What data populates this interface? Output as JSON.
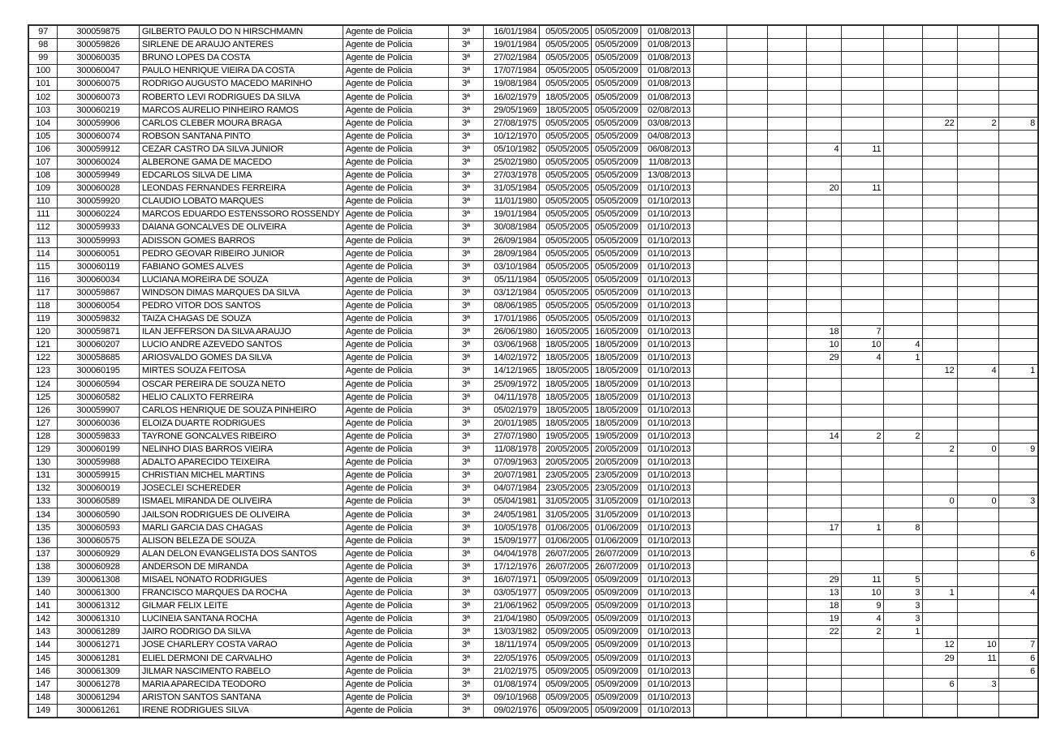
{
  "colors": {
    "background": "#ffffff",
    "grid_border": "#2d2d2d",
    "text": "#000000"
  },
  "table": {
    "position_value": "Agente de Policia",
    "class_value": "3ª",
    "row_number_range": "97-149",
    "rows": [
      [
        "97",
        "300059875",
        "GILBERTO PAULO DO N HIRSCHMAMN",
        "Agente de Policia",
        "3ª",
        "16/01/1984",
        "05/05/2005",
        "05/05/2009",
        "01/08/2013",
        "",
        "",
        "",
        "",
        "",
        "",
        "",
        "",
        ""
      ],
      [
        "98",
        "300059826",
        "SIRLENE DE ARAUJO ANTERES",
        "Agente de Policia",
        "3ª",
        "19/01/1984",
        "05/05/2005",
        "05/05/2009",
        "01/08/2013",
        "",
        "",
        "",
        "",
        "",
        "",
        "",
        "",
        ""
      ],
      [
        "99",
        "300060035",
        "BRUNO LOPES DA COSTA",
        "Agente de Policia",
        "3ª",
        "27/02/1984",
        "05/05/2005",
        "05/05/2009",
        "01/08/2013",
        "",
        "",
        "",
        "",
        "",
        "",
        "",
        "",
        ""
      ],
      [
        "100",
        "300060047",
        "PAULO HENRIQUE VIEIRA DA COSTA",
        "Agente de Policia",
        "3ª",
        "17/07/1984",
        "05/05/2005",
        "05/05/2009",
        "01/08/2013",
        "",
        "",
        "",
        "",
        "",
        "",
        "",
        "",
        ""
      ],
      [
        "101",
        "300060075",
        "RODRIGO AUGUSTO MACEDO MARINHO",
        "Agente de Policia",
        "3ª",
        "19/08/1984",
        "05/05/2005",
        "05/05/2009",
        "01/08/2013",
        "",
        "",
        "",
        "",
        "",
        "",
        "",
        "",
        ""
      ],
      [
        "102",
        "300060073",
        "ROBERTO LEVI RODRIGUES DA SILVA",
        "Agente de Policia",
        "3ª",
        "16/02/1979",
        "18/05/2005",
        "05/05/2009",
        "01/08/2013",
        "",
        "",
        "",
        "",
        "",
        "",
        "",
        "",
        ""
      ],
      [
        "103",
        "300060219",
        "MARCOS AURELIO PINHEIRO RAMOS",
        "Agente de Policia",
        "3ª",
        "29/05/1969",
        "18/05/2005",
        "05/05/2009",
        "02/08/2013",
        "",
        "",
        "",
        "",
        "",
        "",
        "",
        "",
        ""
      ],
      [
        "104",
        "300059906",
        "CARLOS CLEBER MOURA BRAGA",
        "Agente de Policia",
        "3ª",
        "27/08/1975",
        "05/05/2005",
        "05/05/2009",
        "03/08/2013",
        "",
        "",
        "",
        "",
        "",
        "",
        "22",
        "2",
        "8"
      ],
      [
        "105",
        "300060074",
        "ROBSON SANTANA PINTO",
        "Agente de Policia",
        "3ª",
        "10/12/1970",
        "05/05/2005",
        "05/05/2009",
        "04/08/2013",
        "",
        "",
        "",
        "",
        "",
        "",
        "",
        "",
        ""
      ],
      [
        "106",
        "300059912",
        "CEZAR CASTRO DA SILVA JUNIOR",
        "Agente de Policia",
        "3ª",
        "05/10/1982",
        "05/05/2005",
        "05/05/2009",
        "06/08/2013",
        "",
        "",
        "",
        "4",
        "11",
        "",
        "",
        "",
        ""
      ],
      [
        "107",
        "300060024",
        "ALBERONE GAMA DE MACEDO",
        "Agente de Policia",
        "3ª",
        "25/02/1980",
        "05/05/2005",
        "05/05/2009",
        "11/08/2013",
        "",
        "",
        "",
        "",
        "",
        "",
        "",
        "",
        ""
      ],
      [
        "108",
        "300059949",
        "EDCARLOS SILVA DE LIMA",
        "Agente de Policia",
        "3ª",
        "27/03/1978",
        "05/05/2005",
        "05/05/2009",
        "13/08/2013",
        "",
        "",
        "",
        "",
        "",
        "",
        "",
        "",
        ""
      ],
      [
        "109",
        "300060028",
        "LEONDAS FERNANDES FERREIRA",
        "Agente de Policia",
        "3ª",
        "31/05/1984",
        "05/05/2005",
        "05/05/2009",
        "01/10/2013",
        "",
        "",
        "",
        "20",
        "11",
        "",
        "",
        "",
        ""
      ],
      [
        "110",
        "300059920",
        "CLAUDIO LOBATO MARQUES",
        "Agente de Policia",
        "3ª",
        "11/01/1980",
        "05/05/2005",
        "05/05/2009",
        "01/10/2013",
        "",
        "",
        "",
        "",
        "",
        "",
        "",
        "",
        ""
      ],
      [
        "111",
        "300060224",
        "MARCOS EDUARDO ESTENSSORO ROSSENDY",
        "Agente de Policia",
        "3ª",
        "19/01/1984",
        "05/05/2005",
        "05/05/2009",
        "01/10/2013",
        "",
        "",
        "",
        "",
        "",
        "",
        "",
        "",
        ""
      ],
      [
        "112",
        "300059933",
        "DAIANA GONCALVES DE OLIVEIRA",
        "Agente de Policia",
        "3ª",
        "30/08/1984",
        "05/05/2005",
        "05/05/2009",
        "01/10/2013",
        "",
        "",
        "",
        "",
        "",
        "",
        "",
        "",
        ""
      ],
      [
        "113",
        "300059993",
        "ADISSON GOMES BARROS",
        "Agente de Policia",
        "3ª",
        "26/09/1984",
        "05/05/2005",
        "05/05/2009",
        "01/10/2013",
        "",
        "",
        "",
        "",
        "",
        "",
        "",
        "",
        ""
      ],
      [
        "114",
        "300060051",
        "PEDRO GEOVAR RIBEIRO JUNIOR",
        "Agente de Policia",
        "3ª",
        "28/09/1984",
        "05/05/2005",
        "05/05/2009",
        "01/10/2013",
        "",
        "",
        "",
        "",
        "",
        "",
        "",
        "",
        ""
      ],
      [
        "115",
        "300060119",
        "FABIANO GOMES ALVES",
        "Agente de Policia",
        "3ª",
        "03/10/1984",
        "05/05/2005",
        "05/05/2009",
        "01/10/2013",
        "",
        "",
        "",
        "",
        "",
        "",
        "",
        "",
        ""
      ],
      [
        "116",
        "300060034",
        "LUCIANA MOREIRA DE SOUZA",
        "Agente de Policia",
        "3ª",
        "05/11/1984",
        "05/05/2005",
        "05/05/2009",
        "01/10/2013",
        "",
        "",
        "",
        "",
        "",
        "",
        "",
        "",
        ""
      ],
      [
        "117",
        "300059867",
        "WINDSON DIMAS MARQUES DA SILVA",
        "Agente de Policia",
        "3ª",
        "03/12/1984",
        "05/05/2005",
        "05/05/2009",
        "01/10/2013",
        "",
        "",
        "",
        "",
        "",
        "",
        "",
        "",
        ""
      ],
      [
        "118",
        "300060054",
        "PEDRO VITOR DOS SANTOS",
        "Agente de Policia",
        "3ª",
        "08/06/1985",
        "05/05/2005",
        "05/05/2009",
        "01/10/2013",
        "",
        "",
        "",
        "",
        "",
        "",
        "",
        "",
        ""
      ],
      [
        "119",
        "300059832",
        "TAIZA CHAGAS DE SOUZA",
        "Agente de Policia",
        "3ª",
        "17/01/1986",
        "05/05/2005",
        "05/05/2009",
        "01/10/2013",
        "",
        "",
        "",
        "",
        "",
        "",
        "",
        "",
        ""
      ],
      [
        "120",
        "300059871",
        "ILAN JEFFERSON DA SILVA ARAUJO",
        "Agente de Policia",
        "3ª",
        "26/06/1980",
        "16/05/2005",
        "16/05/2009",
        "01/10/2013",
        "",
        "",
        "",
        "18",
        "7",
        "",
        "",
        "",
        ""
      ],
      [
        "121",
        "300060207",
        "LUCIO ANDRE AZEVEDO SANTOS",
        "Agente de Policia",
        "3ª",
        "03/06/1968",
        "18/05/2005",
        "18/05/2009",
        "01/10/2013",
        "",
        "",
        "",
        "10",
        "10",
        "4",
        "",
        "",
        ""
      ],
      [
        "122",
        "300058685",
        "ARIOSVALDO GOMES DA SILVA",
        "Agente de Policia",
        "3ª",
        "14/02/1972",
        "18/05/2005",
        "18/05/2009",
        "01/10/2013",
        "",
        "",
        "",
        "29",
        "4",
        "1",
        "",
        "",
        ""
      ],
      [
        "123",
        "300060195",
        "MIRTES SOUZA FEITOSA",
        "Agente de Policia",
        "3ª",
        "14/12/1965",
        "18/05/2005",
        "18/05/2009",
        "01/10/2013",
        "",
        "",
        "",
        "",
        "",
        "",
        "12",
        "4",
        "1"
      ],
      [
        "124",
        "300060594",
        "OSCAR PEREIRA DE SOUZA NETO",
        "Agente de Policia",
        "3ª",
        "25/09/1972",
        "18/05/2005",
        "18/05/2009",
        "01/10/2013",
        "",
        "",
        "",
        "",
        "",
        "",
        "",
        "",
        ""
      ],
      [
        "125",
        "300060582",
        "HELIO CALIXTO FERREIRA",
        "Agente de Policia",
        "3ª",
        "04/11/1978",
        "18/05/2005",
        "18/05/2009",
        "01/10/2013",
        "",
        "",
        "",
        "",
        "",
        "",
        "",
        "",
        ""
      ],
      [
        "126",
        "300059907",
        "CARLOS HENRIQUE DE SOUZA PINHEIRO",
        "Agente de Policia",
        "3ª",
        "05/02/1979",
        "18/05/2005",
        "18/05/2009",
        "01/10/2013",
        "",
        "",
        "",
        "",
        "",
        "",
        "",
        "",
        ""
      ],
      [
        "127",
        "300060036",
        "ELOIZA DUARTE RODRIGUES",
        "Agente de Policia",
        "3ª",
        "20/01/1985",
        "18/05/2005",
        "18/05/2009",
        "01/10/2013",
        "",
        "",
        "",
        "",
        "",
        "",
        "",
        "",
        ""
      ],
      [
        "128",
        "300059833",
        "TAYRONE GONCALVES RIBEIRO",
        "Agente de Policia",
        "3ª",
        "27/07/1980",
        "19/05/2005",
        "19/05/2009",
        "01/10/2013",
        "",
        "",
        "",
        "14",
        "2",
        "2",
        "",
        "",
        ""
      ],
      [
        "129",
        "300060199",
        "NELINHO DIAS BARROS VIEIRA",
        "Agente de Policia",
        "3ª",
        "11/08/1978",
        "20/05/2005",
        "20/05/2009",
        "01/10/2013",
        "",
        "",
        "",
        "",
        "",
        "",
        "2",
        "0",
        "9"
      ],
      [
        "130",
        "300059988",
        "ADALTO APARECIDO TEIXEIRA",
        "Agente de Policia",
        "3ª",
        "07/09/1963",
        "20/05/2005",
        "20/05/2009",
        "01/10/2013",
        "",
        "",
        "",
        "",
        "",
        "",
        "",
        "",
        ""
      ],
      [
        "131",
        "300059915",
        "CHRISTIAN MICHEL MARTINS",
        "Agente de Policia",
        "3ª",
        "20/07/1981",
        "23/05/2005",
        "23/05/2009",
        "01/10/2013",
        "",
        "",
        "",
        "",
        "",
        "",
        "",
        "",
        ""
      ],
      [
        "132",
        "300060019",
        "JOSECLEI SCHEREDER",
        "Agente de Policia",
        "3ª",
        "04/07/1984",
        "23/05/2005",
        "23/05/2009",
        "01/10/2013",
        "",
        "",
        "",
        "",
        "",
        "",
        "",
        "",
        ""
      ],
      [
        "133",
        "300060589",
        "ISMAEL MIRANDA DE OLIVEIRA",
        "Agente de Policia",
        "3ª",
        "05/04/1981",
        "31/05/2005",
        "31/05/2009",
        "01/10/2013",
        "",
        "",
        "",
        "",
        "",
        "",
        "0",
        "0",
        "3"
      ],
      [
        "134",
        "300060590",
        "JAILSON RODRIGUES DE OLIVEIRA",
        "Agente de Policia",
        "3ª",
        "24/05/1981",
        "31/05/2005",
        "31/05/2009",
        "01/10/2013",
        "",
        "",
        "",
        "",
        "",
        "",
        "",
        "",
        ""
      ],
      [
        "135",
        "300060593",
        "MARLI GARCIA DAS CHAGAS",
        "Agente de Policia",
        "3ª",
        "10/05/1978",
        "01/06/2005",
        "01/06/2009",
        "01/10/2013",
        "",
        "",
        "",
        "17",
        "1",
        "8",
        "",
        "",
        ""
      ],
      [
        "136",
        "300060575",
        "ALISON BELEZA DE SOUZA",
        "Agente de Policia",
        "3ª",
        "15/09/1977",
        "01/06/2005",
        "01/06/2009",
        "01/10/2013",
        "",
        "",
        "",
        "",
        "",
        "",
        "",
        "",
        ""
      ],
      [
        "137",
        "300060929",
        "ALAN DELON EVANGELISTA DOS SANTOS",
        "Agente de Policia",
        "3ª",
        "04/04/1978",
        "26/07/2005",
        "26/07/2009",
        "01/10/2013",
        "",
        "",
        "",
        "",
        "",
        "",
        "",
        "",
        "6"
      ],
      [
        "138",
        "300060928",
        "ANDERSON DE MIRANDA",
        "Agente de Policia",
        "3ª",
        "17/12/1976",
        "26/07/2005",
        "26/07/2009",
        "01/10/2013",
        "",
        "",
        "",
        "",
        "",
        "",
        "",
        "",
        ""
      ],
      [
        "139",
        "300061308",
        "MISAEL NONATO RODRIGUES",
        "Agente de Policia",
        "3ª",
        "16/07/1971",
        "05/09/2005",
        "05/09/2009",
        "01/10/2013",
        "",
        "",
        "",
        "29",
        "11",
        "5",
        "",
        "",
        ""
      ],
      [
        "140",
        "300061300",
        "FRANCISCO MARQUES DA ROCHA",
        "Agente de Policia",
        "3ª",
        "03/05/1977",
        "05/09/2005",
        "05/09/2009",
        "01/10/2013",
        "",
        "",
        "",
        "13",
        "10",
        "3",
        "1",
        "",
        "4"
      ],
      [
        "141",
        "300061312",
        "GILMAR FELIX LEITE",
        "Agente de Policia",
        "3ª",
        "21/06/1962",
        "05/09/2005",
        "05/09/2009",
        "01/10/2013",
        "",
        "",
        "",
        "18",
        "9",
        "3",
        "",
        "",
        ""
      ],
      [
        "142",
        "300061310",
        "LUCINEIA SANTANA ROCHA",
        "Agente de Policia",
        "3ª",
        "21/04/1980",
        "05/09/2005",
        "05/09/2009",
        "01/10/2013",
        "",
        "",
        "",
        "19",
        "4",
        "3",
        "",
        "",
        ""
      ],
      [
        "143",
        "300061289",
        "JAIRO RODRIGO DA SILVA",
        "Agente de Policia",
        "3ª",
        "13/03/1982",
        "05/09/2005",
        "05/09/2009",
        "01/10/2013",
        "",
        "",
        "",
        "22",
        "2",
        "1",
        "",
        "",
        ""
      ],
      [
        "144",
        "300061271",
        "JOSE CHARLERY COSTA VARAO",
        "Agente de Policia",
        "3ª",
        "18/11/1974",
        "05/09/2005",
        "05/09/2009",
        "01/10/2013",
        "",
        "",
        "",
        "",
        "",
        "",
        "12",
        "10",
        "7"
      ],
      [
        "145",
        "300061281",
        "ELIEL DERMONI DE CARVALHO",
        "Agente de Policia",
        "3ª",
        "22/05/1976",
        "05/09/2005",
        "05/09/2009",
        "01/10/2013",
        "",
        "",
        "",
        "",
        "",
        "",
        "29",
        "11",
        "6"
      ],
      [
        "146",
        "300061309",
        "JILMAR NASCIMENTO RABELO",
        "Agente de Policia",
        "3ª",
        "21/02/1975",
        "05/09/2005",
        "05/09/2009",
        "01/10/2013",
        "",
        "",
        "",
        "",
        "",
        "",
        "",
        "",
        "6"
      ],
      [
        "147",
        "300061278",
        "MARIA APARECIDA TEODORO",
        "Agente de Policia",
        "3ª",
        "01/08/1974",
        "05/09/2005",
        "05/09/2009",
        "01/10/2013",
        "",
        "",
        "",
        "",
        "",
        "",
        "6",
        "3",
        ""
      ],
      [
        "148",
        "300061294",
        "ARISTON SANTOS SANTANA",
        "Agente de Policia",
        "3ª",
        "09/10/1968",
        "05/09/2005",
        "05/09/2009",
        "01/10/2013",
        "",
        "",
        "",
        "",
        "",
        "",
        "",
        "",
        ""
      ],
      [
        "149",
        "300061261",
        "IRENE RODRIGUES SILVA",
        "Agente de Policia",
        "3ª",
        "09/02/1976",
        "05/09/2005",
        "05/09/2009",
        "01/10/2013",
        "",
        "",
        "",
        "",
        "",
        "",
        "",
        "",
        ""
      ]
    ]
  }
}
